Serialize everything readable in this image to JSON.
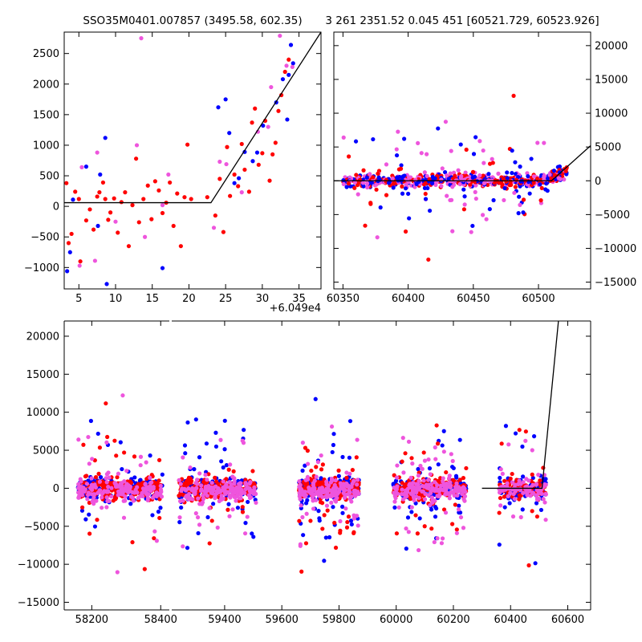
{
  "colors": {
    "blue": "#0000ff",
    "red": "#ff0000",
    "magenta": "#ee55dd",
    "line": "#000000"
  },
  "chart_data": [
    {
      "id": "top-left",
      "type": "scatter",
      "title": "SSO35M0401.007857 (3495.58, 602.35)",
      "xlim": [
        3,
        38
      ],
      "ylim": [
        -1350,
        2850
      ],
      "xticks": [
        5,
        10,
        15,
        20,
        25,
        30,
        35
      ],
      "yticks": [
        -1000,
        -500,
        0,
        500,
        1000,
        1500,
        2000,
        2500
      ],
      "x_offset_label": "+6.049e4",
      "model_line": {
        "x": [
          3,
          23,
          38
        ],
        "y": [
          60,
          60,
          2850
        ]
      },
      "series": [
        {
          "color": "red",
          "points": [
            [
              3.3,
              380
            ],
            [
              3.6,
              -600
            ],
            [
              4,
              -450
            ],
            [
              4.5,
              240
            ],
            [
              5,
              120
            ],
            [
              5.2,
              -900
            ],
            [
              6,
              -230
            ],
            [
              6.5,
              -50
            ],
            [
              7,
              -380
            ],
            [
              7.5,
              160
            ],
            [
              7.8,
              230
            ],
            [
              8.3,
              390
            ],
            [
              8.6,
              120
            ],
            [
              9,
              -220
            ],
            [
              9.3,
              -100
            ],
            [
              9.8,
              130
            ],
            [
              10.3,
              -430
            ],
            [
              10.8,
              70
            ],
            [
              11.3,
              230
            ],
            [
              11.8,
              -650
            ],
            [
              12.3,
              20
            ],
            [
              12.8,
              780
            ],
            [
              13.2,
              -260
            ],
            [
              13.8,
              120
            ],
            [
              14.4,
              340
            ],
            [
              14.9,
              -210
            ],
            [
              15.4,
              410
            ],
            [
              15.9,
              260
            ],
            [
              16.4,
              -110
            ],
            [
              16.9,
              60
            ],
            [
              17.4,
              390
            ],
            [
              17.9,
              -320
            ],
            [
              18.4,
              210
            ],
            [
              18.9,
              -650
            ],
            [
              19.4,
              150
            ],
            [
              19.8,
              1010
            ],
            [
              20.3,
              120
            ],
            [
              22.5,
              150
            ],
            [
              23.6,
              -150
            ],
            [
              24.2,
              450
            ],
            [
              24.7,
              -420
            ],
            [
              25.2,
              970
            ],
            [
              25.6,
              170
            ],
            [
              26.2,
              520
            ],
            [
              26.7,
              330
            ],
            [
              27.2,
              1020
            ],
            [
              27.6,
              600
            ],
            [
              28.2,
              240
            ],
            [
              28.6,
              1370
            ],
            [
              29,
              1600
            ],
            [
              29.5,
              680
            ],
            [
              30,
              870
            ],
            [
              30.4,
              1400
            ],
            [
              31,
              420
            ],
            [
              31.4,
              850
            ],
            [
              31.8,
              1040
            ],
            [
              32.2,
              1560
            ],
            [
              32.6,
              1820
            ],
            [
              33.1,
              2200
            ],
            [
              33.6,
              2400
            ]
          ]
        },
        {
          "color": "blue",
          "points": [
            [
              3.4,
              -1060
            ],
            [
              3.8,
              -750
            ],
            [
              4.2,
              110
            ],
            [
              6,
              650
            ],
            [
              7.6,
              -320
            ],
            [
              7.9,
              520
            ],
            [
              8.6,
              1120
            ],
            [
              8.8,
              -1270
            ],
            [
              16.4,
              -1010
            ],
            [
              24,
              1620
            ],
            [
              25,
              1750
            ],
            [
              25.5,
              1200
            ],
            [
              26.2,
              380
            ],
            [
              26.8,
              460
            ],
            [
              27.6,
              890
            ],
            [
              28.7,
              740
            ],
            [
              29.3,
              880
            ],
            [
              30.1,
              1320
            ],
            [
              31.9,
              1700
            ],
            [
              32.8,
              2080
            ],
            [
              33.4,
              1420
            ],
            [
              33.6,
              2150
            ],
            [
              34.2,
              2340
            ],
            [
              33.9,
              2640
            ]
          ]
        },
        {
          "color": "magenta",
          "points": [
            [
              5.1,
              -970
            ],
            [
              5.4,
              640
            ],
            [
              7.2,
              -890
            ],
            [
              7.5,
              880
            ],
            [
              10,
              -250
            ],
            [
              12.9,
              1000
            ],
            [
              13.5,
              2750
            ],
            [
              14,
              -500
            ],
            [
              16.4,
              20
            ],
            [
              17.2,
              520
            ],
            [
              23.4,
              -350
            ],
            [
              24.2,
              730
            ],
            [
              25.1,
              690
            ],
            [
              27.2,
              230
            ],
            [
              29.4,
              1220
            ],
            [
              30.8,
              1300
            ],
            [
              31.2,
              1950
            ],
            [
              32.4,
              2790
            ],
            [
              33.3,
              2300
            ],
            [
              34.1,
              2280
            ]
          ]
        }
      ]
    },
    {
      "id": "top-right",
      "type": "scatter",
      "title": "3 261 2351.52 0.045 451 [60521.729, 60523.926]",
      "xlim": [
        60343,
        60540
      ],
      "ylim": [
        -16000,
        22000
      ],
      "xticks": [
        60350,
        60400,
        60450,
        60500
      ],
      "yticks": [
        -15000,
        -10000,
        -5000,
        0,
        5000,
        10000,
        15000,
        20000
      ],
      "model_line": {
        "x": [
          60343,
          60510,
          60540
        ],
        "y": [
          0,
          0,
          5200
        ]
      }
    },
    {
      "id": "bottom",
      "type": "scatter",
      "title": "",
      "xlim": [
        58120,
        60680
      ],
      "ylim": [
        -16000,
        22000
      ],
      "xticks": [
        58200,
        58400,
        59400,
        59600,
        59800,
        60000,
        60200,
        60400,
        60600
      ],
      "yticks": [
        -15000,
        -10000,
        -5000,
        0,
        5000,
        10000,
        15000,
        20000
      ],
      "axis_break": [
        58425,
        59215
      ],
      "segments": [
        [
          58160,
          58405
        ],
        [
          59240,
          59510
        ],
        [
          59660,
          59870
        ],
        [
          59990,
          60245
        ],
        [
          60360,
          60525
        ]
      ],
      "model_line": {
        "x": [
          60300,
          60510,
          60570
        ],
        "y": [
          0,
          0,
          23000
        ]
      }
    }
  ]
}
